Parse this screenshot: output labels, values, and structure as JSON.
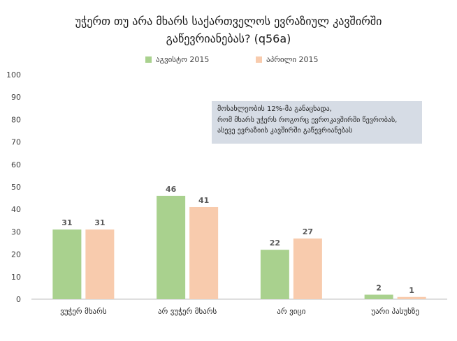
{
  "chart_data": {
    "type": "bar",
    "title_line1": "უჭერთ თუ არა მხარს საქართველოს ევრაზიულ კავშირში",
    "title_line2": "გაწევრიანებას? (q56a)",
    "categories": [
      "ვუჭერ მხარს",
      "არ ვუჭერ მხარს",
      "არ ვიცი",
      "უარი პასუხზე"
    ],
    "series": [
      {
        "name": "აგვისტო 2015",
        "values": [
          31,
          46,
          22,
          2
        ],
        "color": "#a9d18e"
      },
      {
        "name": "აპრილი 2015",
        "values": [
          31,
          41,
          27,
          1
        ],
        "color": "#f8cbad"
      }
    ],
    "ylim": [
      0,
      100
    ],
    "yticks": [
      0,
      10,
      20,
      30,
      40,
      50,
      60,
      70,
      80,
      90,
      100
    ],
    "xlabel": "",
    "ylabel": "",
    "grid": false,
    "legend_position": "top",
    "annotation": [
      "მოსახლეობის 12%-მა განაცხადა,",
      "რომ მხარს უჭერს როგორც ევროკავშირში წევრობას,",
      "ასევე ევრაზიის კავშირში გაწევრიანებას"
    ]
  }
}
